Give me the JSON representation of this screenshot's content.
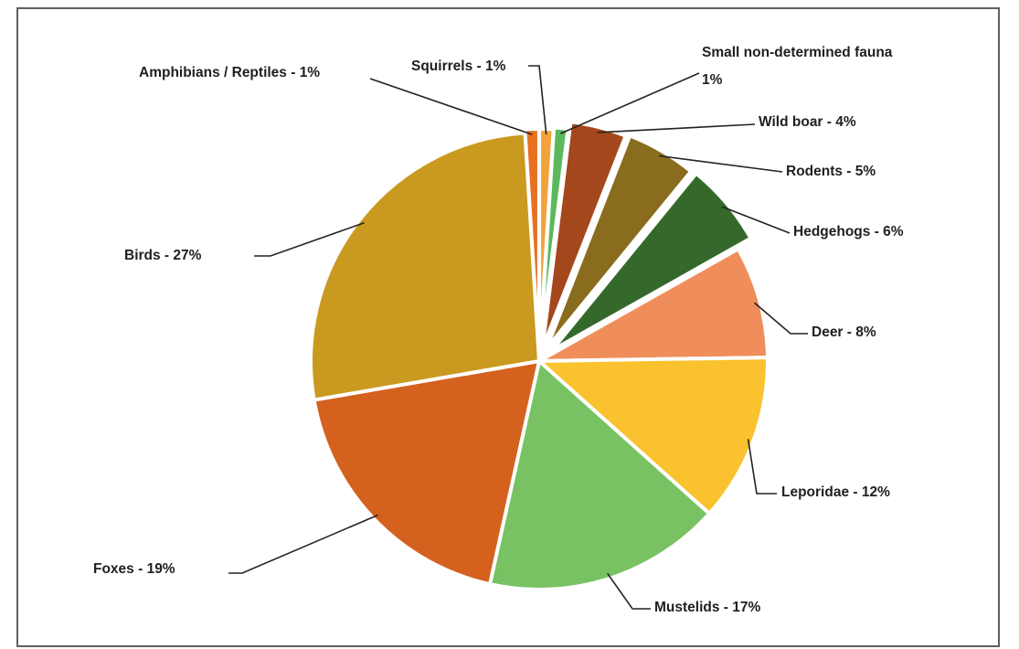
{
  "chart_data": {
    "type": "pie",
    "title": "",
    "slices": [
      {
        "name": "Squirrels",
        "label": "Squirrels - 1%",
        "value": 1,
        "color": "#f2a43a"
      },
      {
        "name": "Small non-determined fauna",
        "label_line1": "Small non-determined fauna",
        "label_line2": "1%",
        "value": 1,
        "color": "#5cb85c"
      },
      {
        "name": "Wild boar",
        "label": "Wild boar - 4%",
        "value": 4,
        "color": "#a4471d"
      },
      {
        "name": "Rodents",
        "label": "Rodents - 5%",
        "value": 5,
        "color": "#8a6c1e"
      },
      {
        "name": "Hedgehogs",
        "label": "Hedgehogs - 6%",
        "value": 6,
        "color": "#34692b"
      },
      {
        "name": "Deer",
        "label": "Deer - 8%",
        "value": 8,
        "color": "#f08e5b"
      },
      {
        "name": "Leporidae",
        "label": "Leporidae - 12%",
        "value": 12,
        "color": "#f9c22e"
      },
      {
        "name": "Mustelids",
        "label": "Mustelids - 17%",
        "value": 17,
        "color": "#79c264"
      },
      {
        "name": "Foxes",
        "label": "Foxes - 19%",
        "value": 19,
        "color": "#d5611f"
      },
      {
        "name": "Birds",
        "label": "Birds - 27%",
        "value": 27,
        "color": "#c99a1f"
      },
      {
        "name": "Amphibians / Reptiles",
        "label": "Amphibians / Reptiles - 1%",
        "value": 1,
        "color": "#e8701e"
      }
    ]
  }
}
